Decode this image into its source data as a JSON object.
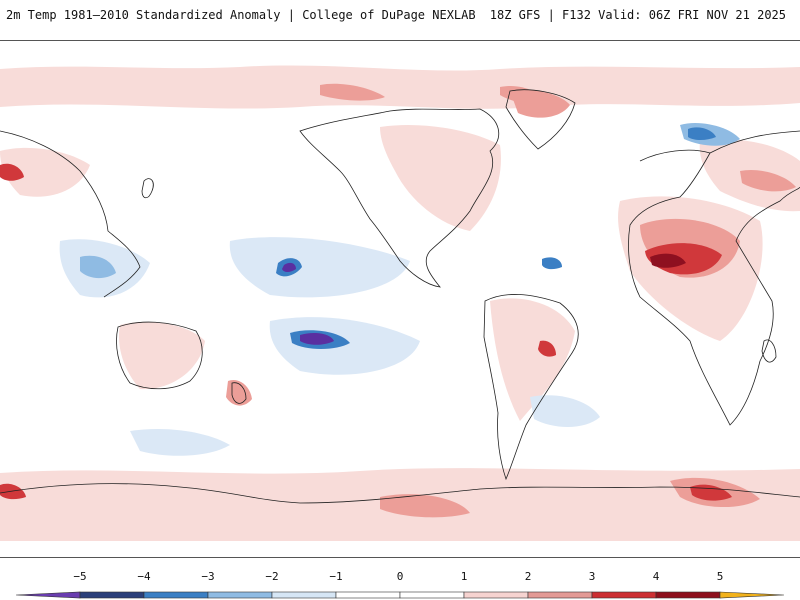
{
  "header": {
    "title": "2m Temp 1981–2010 Standardized Anomaly | College of DuPage NEXLAB",
    "run_info": "18Z GFS | F132 Valid: 06Z FRI NOV 21 2025"
  },
  "colorbar": {
    "labels": [
      "−5",
      "−4",
      "−3",
      "−2",
      "−1",
      "0",
      "1",
      "2",
      "3",
      "4",
      "5"
    ],
    "colors": [
      "#6a3db0",
      "#2b3f7a",
      "#3b7fc4",
      "#8fbbe3",
      "#d6e6f5",
      "#ffffff",
      "#ffffff",
      "#f6d3d0",
      "#e39a95",
      "#cc2f33",
      "#8d0f1c",
      "#f2b21b"
    ]
  },
  "map": {
    "colors": {
      "warm_light": "#f8dcd9",
      "warm_mid": "#ec9e98",
      "warm_strong": "#d0383b",
      "warm_extreme": "#8e1020",
      "cool_light": "#dbe8f6",
      "cool_mid": "#8fbbe3",
      "cool_strong": "#3b7fc4",
      "cool_extreme": "#5a2fa0",
      "coast": "#222222"
    }
  }
}
